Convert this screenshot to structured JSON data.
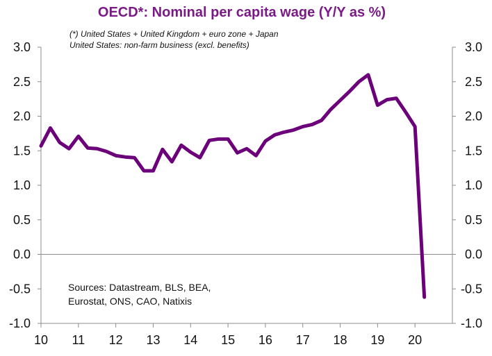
{
  "chart_data": {
    "type": "line",
    "title": "OECD*:  Nominal per capita wage (Y/Y as %)",
    "notes": [
      "(*) United States + United Kingdom + euro zone + Japan",
      "United States: non-farm business (excl. benefits)"
    ],
    "sources": [
      "Sources:  Datastream,  BLS, BEA,",
      "Eurostat, ONS, CAO, Natixis"
    ],
    "xlim": [
      10,
      21
    ],
    "ylim": [
      -1.0,
      3.0
    ],
    "x_tick_labels": [
      "10",
      "11",
      "12",
      "13",
      "14",
      "15",
      "16",
      "17",
      "18",
      "19",
      "20"
    ],
    "y_tick_labels": [
      "3.0",
      "2.5",
      "2.0",
      "1.5",
      "1.0",
      "0.5",
      "0.0",
      "-0.5",
      "-1.0"
    ],
    "y_tick_values": [
      3.0,
      2.5,
      2.0,
      1.5,
      1.0,
      0.5,
      0.0,
      -0.5,
      -1.0
    ],
    "grid": false,
    "reference_line": 0.0,
    "line_color": "#6b007a",
    "series": [
      {
        "x": [
          10.0,
          10.25,
          10.5,
          10.75,
          11.0,
          11.25,
          11.5,
          11.75,
          12.0,
          12.25,
          12.5,
          12.75,
          13.0,
          13.25,
          13.5,
          13.75,
          14.0,
          14.25,
          14.5,
          14.75,
          15.0,
          15.25,
          15.5,
          15.75,
          16.0,
          16.25,
          16.5,
          16.75,
          17.0,
          17.25,
          17.5,
          17.75,
          18.0,
          18.25,
          18.5,
          18.75,
          19.0,
          19.25,
          19.5,
          19.75,
          20.0,
          20.25
        ],
        "values": [
          1.57,
          1.83,
          1.62,
          1.53,
          1.71,
          1.54,
          1.53,
          1.49,
          1.43,
          1.41,
          1.4,
          1.21,
          1.21,
          1.52,
          1.34,
          1.58,
          1.48,
          1.4,
          1.65,
          1.67,
          1.67,
          1.47,
          1.53,
          1.43,
          1.64,
          1.73,
          1.77,
          1.8,
          1.85,
          1.88,
          1.94,
          2.1,
          2.23,
          2.36,
          2.5,
          2.6,
          2.16,
          2.24,
          2.26,
          2.06,
          1.85,
          -0.62
        ]
      }
    ]
  }
}
